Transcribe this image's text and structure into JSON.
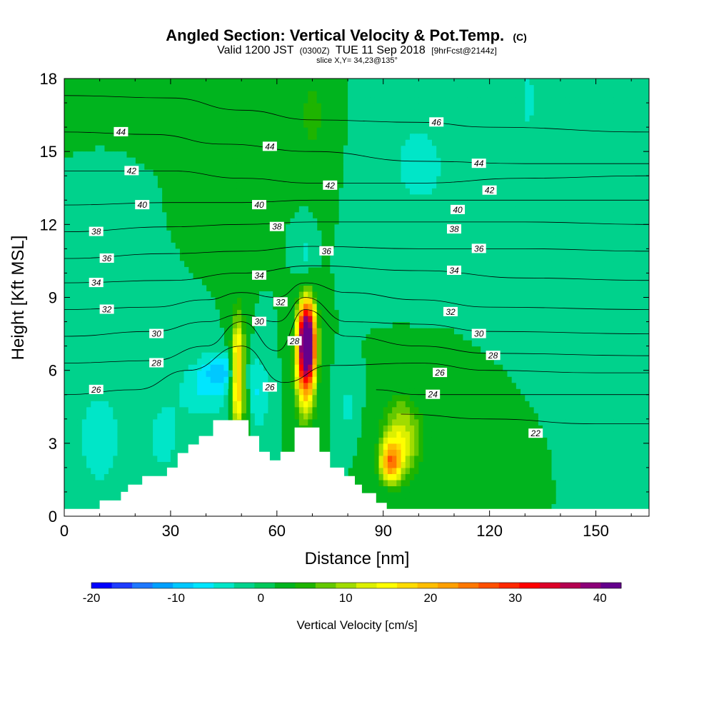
{
  "chart_data": {
    "type": "heatmap",
    "title": "Angled Section: Vertical Velocity & Pot.Temp.",
    "title_mark": "(C)",
    "subtitle_parts": [
      "Valid 1200 JST",
      "(0300Z)",
      "TUE 11 Sep 2018",
      "[9hrFcst@2144z]"
    ],
    "slice_label": "slice X,Y= 34,23@135°",
    "xlabel": "Distance [nm]",
    "ylabel": "Height [Kft MSL]",
    "xlim": [
      0,
      165
    ],
    "ylim": [
      0,
      18
    ],
    "x_ticks": [
      0,
      30,
      60,
      90,
      120,
      150
    ],
    "y_ticks": [
      0,
      3,
      6,
      9,
      12,
      15,
      18
    ],
    "background_value": 0,
    "colorbar": {
      "label": "Vertical Velocity [cm/s]",
      "min": -20,
      "max": 42.5,
      "step": 2.5,
      "tick_values": [
        -20,
        -10,
        0,
        10,
        20,
        30,
        40
      ],
      "tick_labels": [
        "-20",
        "-10",
        "0",
        "10",
        "20",
        "30",
        "40"
      ],
      "colors": [
        "#0000ff",
        "#1e3cff",
        "#1e78ff",
        "#00a0ff",
        "#00c8ff",
        "#00e6ff",
        "#00e6c8",
        "#00d28c",
        "#00c85a",
        "#00b41e",
        "#1eb400",
        "#64c800",
        "#a0dc00",
        "#dcf000",
        "#ffff00",
        "#ffdc00",
        "#ffbe00",
        "#ffa000",
        "#ff7800",
        "#ff5000",
        "#ff2800",
        "#ff0000",
        "#dc0028",
        "#b40050",
        "#8c0078",
        "#64008c"
      ]
    },
    "velocity_features": [
      {
        "x": 45,
        "y": 6.0,
        "rx": 6,
        "ry": 0.7,
        "value": -7
      },
      {
        "x": 40,
        "y": 5.2,
        "rx": 8,
        "ry": 1.2,
        "value": -5
      },
      {
        "x": 10,
        "y": 3.2,
        "rx": 6,
        "ry": 2.0,
        "value": -5
      },
      {
        "x": 28,
        "y": 3.3,
        "rx": 5,
        "ry": 1.5,
        "value": -4
      },
      {
        "x": 55,
        "y": 5.0,
        "rx": 3,
        "ry": 1.5,
        "value": -5
      },
      {
        "x": 68,
        "y": 10.5,
        "rx": 2.5,
        "ry": 1.5,
        "value": -4
      },
      {
        "x": 131,
        "y": 17.2,
        "rx": 1.5,
        "ry": 1.0,
        "value": -4
      },
      {
        "x": 80,
        "y": 4.5,
        "rx": 3,
        "ry": 1.2,
        "value": -3
      },
      {
        "x": 49,
        "y": 5.8,
        "rx": 2.0,
        "ry": 2.5,
        "value": 24
      },
      {
        "x": 68.5,
        "y": 7.3,
        "rx": 2.4,
        "ry": 1.6,
        "value": 40
      },
      {
        "x": 68,
        "y": 6.2,
        "rx": 3.0,
        "ry": 2.4,
        "value": 22
      },
      {
        "x": 95,
        "y": 3.2,
        "rx": 6,
        "ry": 1.8,
        "value": 14
      },
      {
        "x": 92,
        "y": 2.2,
        "rx": 3,
        "ry": 0.8,
        "value": 20
      },
      {
        "x": 70,
        "y": 16.5,
        "rx": 5,
        "ry": 2.5,
        "value": 6
      },
      {
        "x": 50,
        "y": 15.0,
        "rx": 4,
        "ry": 2.5,
        "value": 4
      },
      {
        "x": 110,
        "y": 4.0,
        "rx": 10,
        "ry": 2.0,
        "value": 2
      },
      {
        "x": 125,
        "y": 13.0,
        "rx": 12,
        "ry": 4.0,
        "value": -2
      },
      {
        "x": 100,
        "y": 14.5,
        "rx": 12,
        "ry": 3.0,
        "value": -3
      }
    ],
    "terrain": {
      "x": [
        0,
        10,
        10,
        16,
        16,
        18,
        18,
        22,
        22,
        29,
        29,
        32,
        32,
        35,
        35,
        38,
        38,
        42,
        42,
        47,
        47,
        52,
        52,
        55,
        55,
        58,
        58,
        61,
        61,
        65,
        65,
        72,
        72,
        75,
        75,
        79,
        79,
        82,
        82,
        84,
        84,
        88,
        88,
        91,
        91,
        165
      ],
      "y": [
        0.3,
        0.3,
        0.65,
        0.65,
        1.0,
        1.0,
        1.3,
        1.3,
        1.65,
        1.65,
        2.0,
        2.0,
        2.6,
        2.6,
        2.95,
        2.95,
        3.3,
        3.3,
        3.95,
        3.95,
        3.95,
        3.95,
        3.3,
        3.3,
        2.65,
        2.65,
        2.3,
        2.3,
        2.65,
        2.65,
        3.65,
        3.65,
        2.65,
        2.65,
        2.0,
        2.0,
        1.65,
        1.65,
        1.3,
        1.3,
        0.95,
        0.95,
        0.55,
        0.55,
        0.3,
        0.3
      ]
    },
    "isentropes": [
      {
        "theta": 22,
        "points": [
          [
            95,
            4.2
          ],
          [
            120,
            4.0
          ],
          [
            150,
            3.8
          ],
          [
            165,
            3.8
          ]
        ]
      },
      {
        "theta": 24,
        "points": [
          [
            88,
            5.2
          ],
          [
            100,
            5.0
          ],
          [
            120,
            5.0
          ],
          [
            150,
            5.0
          ],
          [
            165,
            5.0
          ]
        ]
      },
      {
        "theta": 26,
        "points": [
          [
            0,
            5.0
          ],
          [
            20,
            5.2
          ],
          [
            35,
            6.0
          ],
          [
            50,
            7.0
          ],
          [
            62,
            5.5
          ],
          [
            75,
            6.2
          ],
          [
            100,
            6.3
          ],
          [
            120,
            6.0
          ],
          [
            150,
            5.9
          ],
          [
            165,
            5.9
          ]
        ]
      },
      {
        "theta": 28,
        "points": [
          [
            0,
            6.3
          ],
          [
            25,
            6.4
          ],
          [
            40,
            7.0
          ],
          [
            50,
            8.0
          ],
          [
            60,
            6.8
          ],
          [
            68,
            8.5
          ],
          [
            80,
            7.4
          ],
          [
            100,
            7.0
          ],
          [
            120,
            6.7
          ],
          [
            165,
            6.6
          ]
        ]
      },
      {
        "theta": 30,
        "points": [
          [
            0,
            7.4
          ],
          [
            25,
            7.6
          ],
          [
            40,
            8.0
          ],
          [
            50,
            8.3
          ],
          [
            60,
            8.0
          ],
          [
            68,
            9.0
          ],
          [
            80,
            8.0
          ],
          [
            100,
            7.9
          ],
          [
            120,
            7.6
          ],
          [
            165,
            7.5
          ]
        ]
      },
      {
        "theta": 32,
        "points": [
          [
            0,
            8.5
          ],
          [
            25,
            8.6
          ],
          [
            40,
            8.9
          ],
          [
            50,
            9.2
          ],
          [
            60,
            9.0
          ],
          [
            68,
            9.6
          ],
          [
            80,
            9.2
          ],
          [
            100,
            8.9
          ],
          [
            120,
            8.6
          ],
          [
            165,
            8.5
          ]
        ]
      },
      {
        "theta": 34,
        "points": [
          [
            0,
            9.6
          ],
          [
            30,
            9.7
          ],
          [
            50,
            10.0
          ],
          [
            70,
            10.3
          ],
          [
            100,
            10.1
          ],
          [
            130,
            9.8
          ],
          [
            165,
            9.7
          ]
        ]
      },
      {
        "theta": 36,
        "points": [
          [
            0,
            10.6
          ],
          [
            30,
            10.8
          ],
          [
            50,
            10.9
          ],
          [
            70,
            11.1
          ],
          [
            100,
            11.0
          ],
          [
            130,
            11.0
          ],
          [
            165,
            10.9
          ]
        ]
      },
      {
        "theta": 38,
        "points": [
          [
            0,
            11.7
          ],
          [
            30,
            11.9
          ],
          [
            50,
            12.0
          ],
          [
            70,
            12.1
          ],
          [
            100,
            12.1
          ],
          [
            130,
            12.1
          ],
          [
            165,
            12.0
          ]
        ]
      },
      {
        "theta": 40,
        "points": [
          [
            0,
            12.8
          ],
          [
            30,
            12.9
          ],
          [
            50,
            12.9
          ],
          [
            70,
            13.0
          ],
          [
            100,
            13.0
          ],
          [
            130,
            13.0
          ],
          [
            165,
            13.0
          ]
        ]
      },
      {
        "theta": 42,
        "points": [
          [
            0,
            14.2
          ],
          [
            30,
            14.2
          ],
          [
            50,
            13.9
          ],
          [
            70,
            13.7
          ],
          [
            100,
            13.7
          ],
          [
            130,
            13.9
          ],
          [
            165,
            14.0
          ]
        ]
      },
      {
        "theta": 44,
        "points": [
          [
            0,
            15.8
          ],
          [
            25,
            15.7
          ],
          [
            45,
            15.3
          ],
          [
            70,
            15.0
          ],
          [
            100,
            14.6
          ],
          [
            130,
            14.5
          ],
          [
            165,
            14.5
          ]
        ]
      },
      {
        "theta": 46,
        "points": [
          [
            0,
            17.3
          ],
          [
            30,
            17.2
          ],
          [
            50,
            16.7
          ],
          [
            70,
            16.3
          ],
          [
            100,
            16.2
          ],
          [
            120,
            16.0
          ],
          [
            165,
            15.8
          ]
        ]
      }
    ],
    "contour_labels": [
      {
        "text": "44",
        "x": 16,
        "y": 15.8
      },
      {
        "text": "42",
        "x": 19,
        "y": 14.2
      },
      {
        "text": "40",
        "x": 22,
        "y": 12.8
      },
      {
        "text": "38",
        "x": 9,
        "y": 11.7
      },
      {
        "text": "36",
        "x": 12,
        "y": 10.6
      },
      {
        "text": "34",
        "x": 9,
        "y": 9.6
      },
      {
        "text": "32",
        "x": 12,
        "y": 8.5
      },
      {
        "text": "30",
        "x": 26,
        "y": 7.5
      },
      {
        "text": "28",
        "x": 26,
        "y": 6.3
      },
      {
        "text": "26",
        "x": 9,
        "y": 5.2
      },
      {
        "text": "44",
        "x": 58,
        "y": 15.2
      },
      {
        "text": "42",
        "x": 75,
        "y": 13.6
      },
      {
        "text": "40",
        "x": 55,
        "y": 12.8
      },
      {
        "text": "38",
        "x": 60,
        "y": 11.9
      },
      {
        "text": "36",
        "x": 74,
        "y": 10.9
      },
      {
        "text": "34",
        "x": 55,
        "y": 9.9
      },
      {
        "text": "32",
        "x": 61,
        "y": 8.8
      },
      {
        "text": "30",
        "x": 55,
        "y": 8.0
      },
      {
        "text": "28",
        "x": 65,
        "y": 7.2
      },
      {
        "text": "26",
        "x": 58,
        "y": 5.3
      },
      {
        "text": "46",
        "x": 105,
        "y": 16.2
      },
      {
        "text": "44",
        "x": 117,
        "y": 14.5
      },
      {
        "text": "42",
        "x": 120,
        "y": 13.4
      },
      {
        "text": "40",
        "x": 111,
        "y": 12.6
      },
      {
        "text": "38",
        "x": 110,
        "y": 11.8
      },
      {
        "text": "36",
        "x": 117,
        "y": 11.0
      },
      {
        "text": "34",
        "x": 110,
        "y": 10.1
      },
      {
        "text": "32",
        "x": 109,
        "y": 8.4
      },
      {
        "text": "30",
        "x": 117,
        "y": 7.5
      },
      {
        "text": "28",
        "x": 121,
        "y": 6.6
      },
      {
        "text": "26",
        "x": 106,
        "y": 5.9
      },
      {
        "text": "24",
        "x": 104,
        "y": 5.0
      },
      {
        "text": "22",
        "x": 133,
        "y": 3.4
      }
    ]
  }
}
